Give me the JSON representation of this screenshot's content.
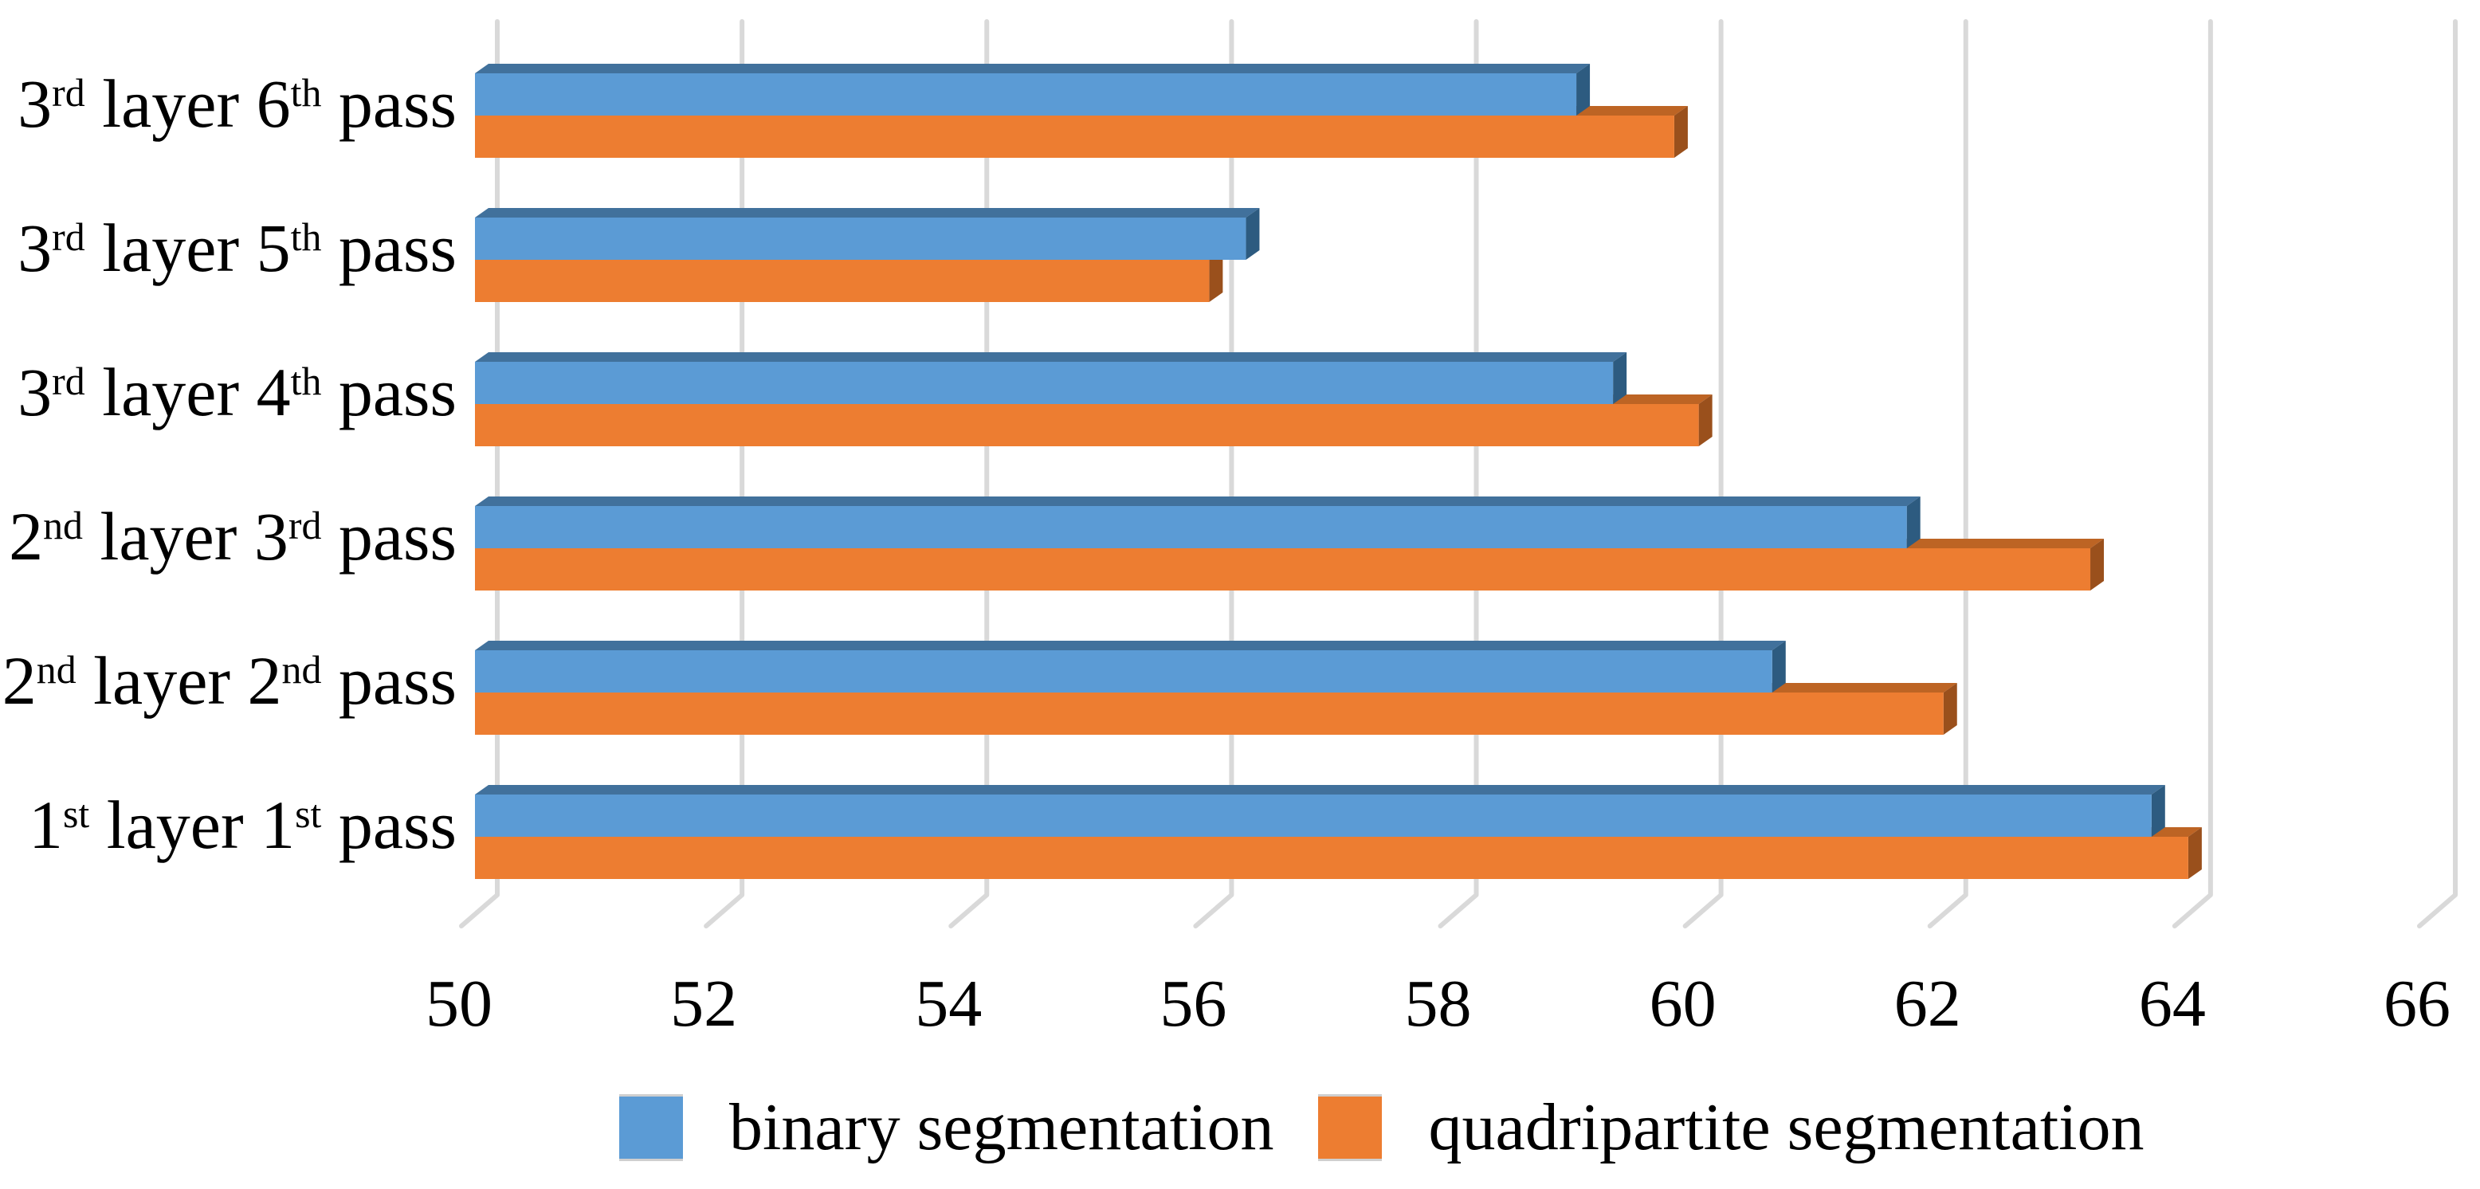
{
  "chart_data": {
    "type": "bar",
    "orientation": "horizontal",
    "style": "3d-beveled-clustered-bars",
    "title": "",
    "xlabel": "",
    "ylabel": "",
    "categories_top_to_bottom": [
      "3rd layer 6th pass",
      "3rd layer 5th pass",
      "3rd layer 4th pass",
      "2nd layer 3rd pass",
      "2nd layer 2nd pass",
      "1st layer 1st pass"
    ],
    "series": [
      {
        "key": "binary",
        "name": "binary segmentation",
        "values_top_to_bottom": [
          59.0,
          56.3,
          59.3,
          61.7,
          60.6,
          63.7
        ],
        "colors": {
          "face": "#5B9BD5",
          "top": "#41719C",
          "side": "#2D5B80"
        }
      },
      {
        "key": "quadripartite",
        "name": "quadripartite segmentation",
        "values_top_to_bottom": [
          59.8,
          56.0,
          60.0,
          63.2,
          62.0,
          64.0
        ],
        "colors": {
          "face": "#ED7D31",
          "top": "#BD6424",
          "side": "#9A501C"
        }
      }
    ],
    "xlim": [
      50,
      66
    ],
    "xticks": [
      50,
      52,
      54,
      56,
      58,
      60,
      62,
      64,
      66
    ],
    "grid": true,
    "gridline_color": "#D9D9D9",
    "legend_position": "bottom"
  }
}
